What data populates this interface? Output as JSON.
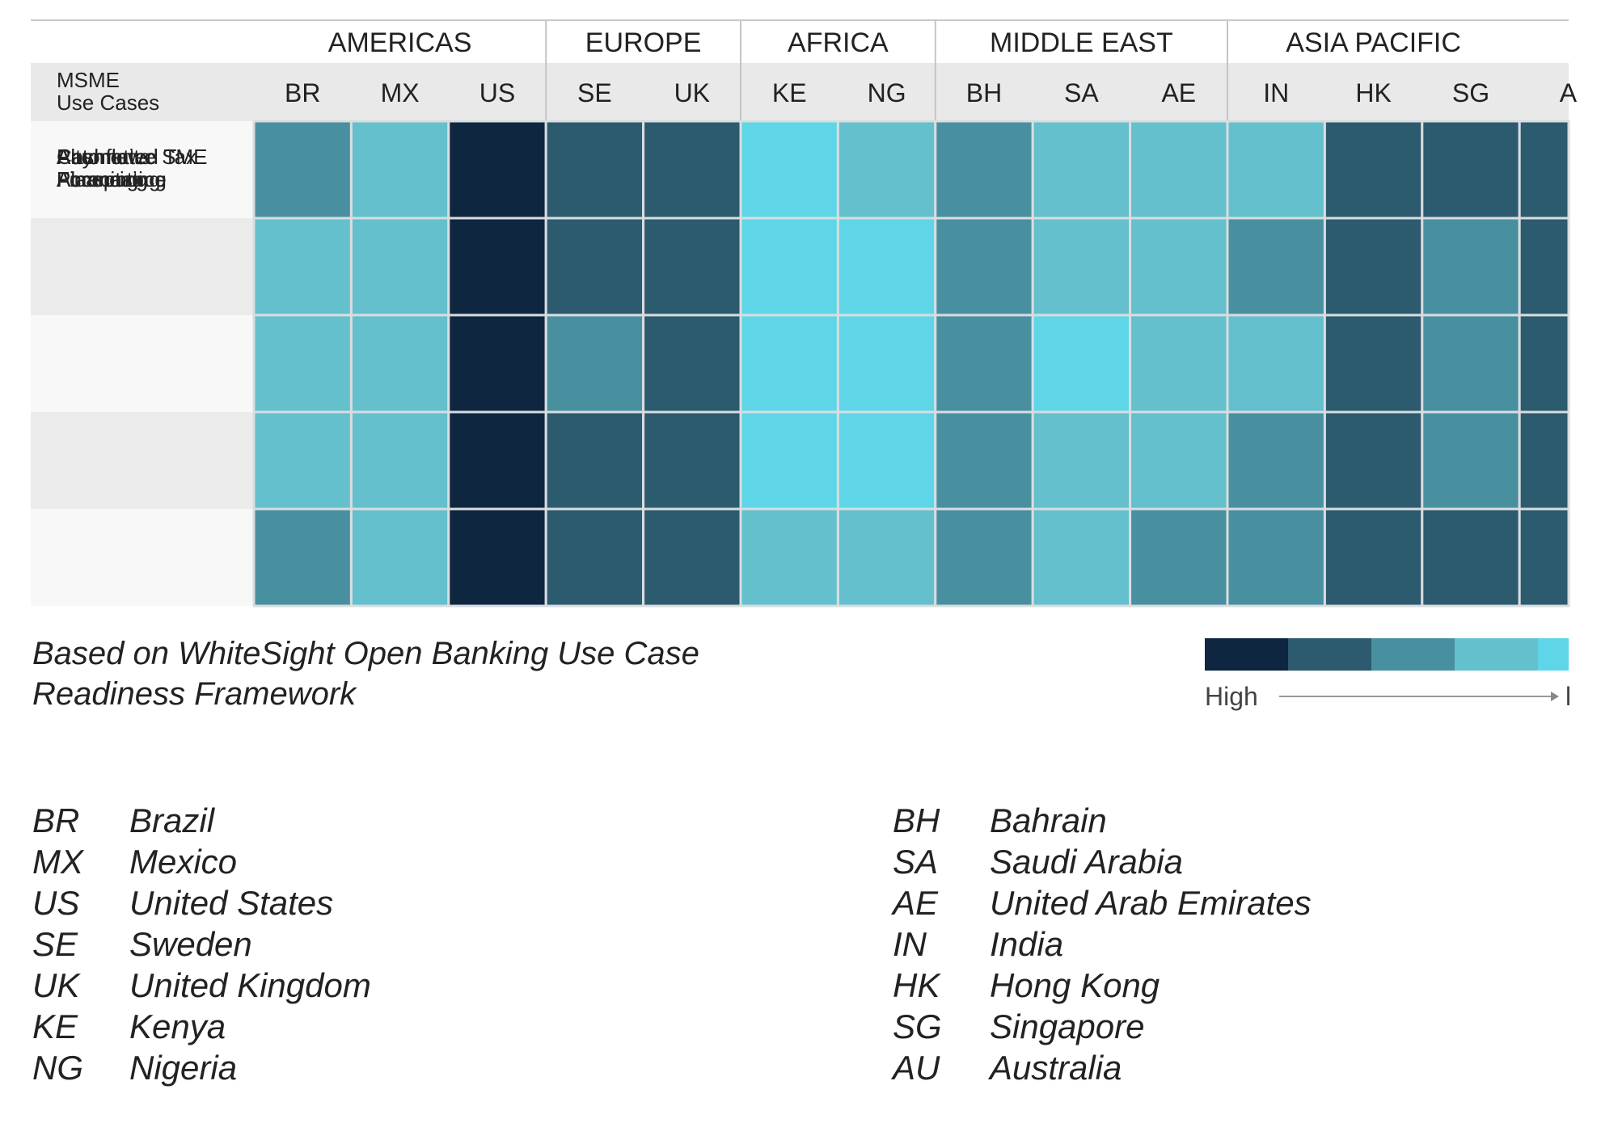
{
  "chart_data": {
    "type": "heatmap",
    "row_header": [
      "MSME",
      "Use Cases"
    ],
    "regions": [
      {
        "name": "AMERICAS",
        "countries": [
          "BR",
          "MX",
          "US"
        ]
      },
      {
        "name": "EUROPE",
        "countries": [
          "SE",
          "UK"
        ]
      },
      {
        "name": "AFRICA",
        "countries": [
          "KE",
          "NG"
        ]
      },
      {
        "name": "MIDDLE EAST",
        "countries": [
          "BH",
          "SA",
          "AE"
        ]
      },
      {
        "name": "ASIA PACIFIC",
        "countries": [
          "IN",
          "HK",
          "SG",
          "A"
        ]
      }
    ],
    "rows": [
      {
        "label": [
          "Automated",
          "Accounting"
        ],
        "values": [
          3,
          4,
          1,
          2,
          2,
          5,
          4,
          3,
          4,
          4,
          4,
          2,
          2,
          2
        ]
      },
      {
        "label": [
          "Payments",
          "Acceptance"
        ],
        "values": [
          4,
          4,
          1,
          2,
          2,
          5,
          5,
          3,
          4,
          4,
          3,
          2,
          3,
          2
        ]
      },
      {
        "label": [
          "Cashflow",
          "Forecasting"
        ],
        "values": [
          4,
          4,
          1,
          3,
          2,
          5,
          5,
          3,
          5,
          4,
          4,
          2,
          3,
          2
        ]
      },
      {
        "label": [
          "Alternative SME",
          "Financing"
        ],
        "values": [
          4,
          4,
          1,
          2,
          2,
          5,
          5,
          3,
          4,
          4,
          3,
          2,
          3,
          2
        ]
      },
      {
        "label": [
          "Automated Tax",
          "Planning"
        ],
        "values": [
          3,
          4,
          1,
          2,
          2,
          4,
          4,
          3,
          4,
          3,
          3,
          2,
          2,
          2
        ]
      }
    ],
    "scale": {
      "levels": 5,
      "high_label": "High",
      "low_label": "l"
    },
    "colors": [
      "#0e2640",
      "#2c5a6e",
      "#48909f",
      "#64c0cc",
      "#5fd6e8"
    ],
    "caption": [
      "Based on WhiteSight Open Banking Use Case",
      "Readiness Framework"
    ],
    "glossary": [
      {
        "code": "BR",
        "name": "Brazil"
      },
      {
        "code": "MX",
        "name": "Mexico"
      },
      {
        "code": "US",
        "name": "United States"
      },
      {
        "code": "SE",
        "name": "Sweden"
      },
      {
        "code": "UK",
        "name": "United Kingdom"
      },
      {
        "code": "KE",
        "name": "Kenya"
      },
      {
        "code": "NG",
        "name": "Nigeria"
      },
      {
        "code": "BH",
        "name": "Bahrain"
      },
      {
        "code": "SA",
        "name": "Saudi Arabia"
      },
      {
        "code": "AE",
        "name": "United Arab Emirates"
      },
      {
        "code": "IN",
        "name": "India"
      },
      {
        "code": "HK",
        "name": "Hong Kong"
      },
      {
        "code": "SG",
        "name": "Singapore"
      },
      {
        "code": "AU",
        "name": "Australia"
      }
    ]
  }
}
